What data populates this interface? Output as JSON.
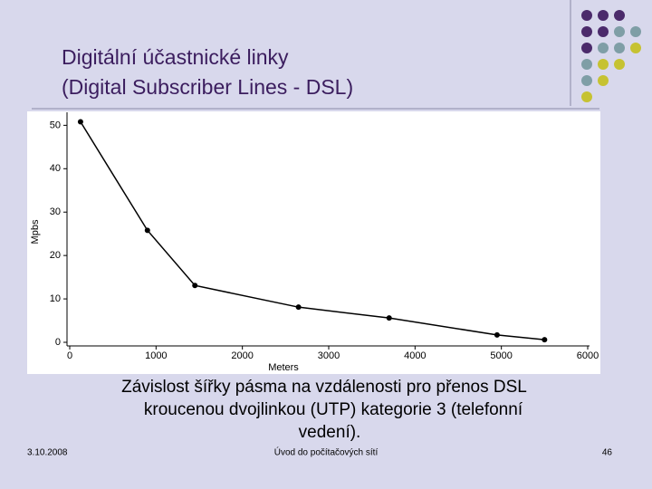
{
  "slide": {
    "title": [
      "Digitální účastnické linky",
      "(Digital Subscriber Lines - DSL)"
    ],
    "caption": [
      "Závislost šířky pásma na vzdálenosti pro přenos DSL",
      "kroucenou dvojlinkou (UTP) kategorie 3 (telefonní",
      "vedení)."
    ],
    "footer": {
      "date": "3.10.2008",
      "course": "Úvod do počítačových sítí",
      "page": "46"
    }
  },
  "chart_data": {
    "type": "line",
    "x_label": "Meters",
    "y_label": "Mpbs",
    "x": [
      125,
      900,
      1450,
      2650,
      3700,
      4950,
      5500
    ],
    "series": [
      {
        "color": "#000000",
        "values": [
          50.8,
          25.8,
          13.1,
          8.1,
          5.6,
          1.7,
          0.6
        ]
      }
    ],
    "xlim": [
      0,
      6000
    ],
    "xticks": [
      0,
      1000,
      2000,
      3000,
      4000,
      5000,
      6000
    ],
    "ylim": [
      0,
      53
    ],
    "yticks": [
      0,
      10,
      20,
      30,
      40,
      50
    ],
    "markers": true,
    "grid": false
  }
}
